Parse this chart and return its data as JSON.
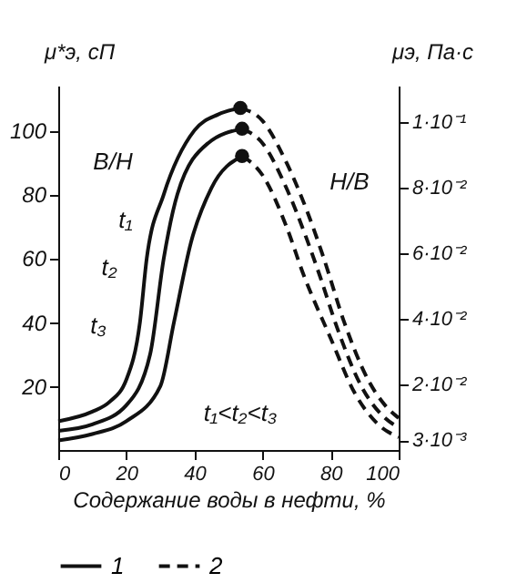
{
  "chart_data": {
    "type": "line",
    "xlabel": "Содержание воды в нефти, %",
    "ylabel": "μ*э, сП",
    "y2label": "μэ, Па·с",
    "xlim": [
      0,
      100
    ],
    "xticks": [
      0,
      20,
      40,
      60,
      80,
      100
    ],
    "ylim": [
      0,
      114
    ],
    "yticks": [
      20,
      40,
      60,
      80,
      100
    ],
    "y2lim": [
      0,
      0.111
    ],
    "y2ticks": [
      {
        "value": 0.003,
        "label": "3·10⁻³"
      },
      {
        "value": 0.02,
        "label": "2·10⁻²"
      },
      {
        "value": 0.04,
        "label": "4·10⁻²"
      },
      {
        "value": 0.06,
        "label": "6·10⁻²"
      },
      {
        "value": 0.08,
        "label": "8·10⁻²"
      },
      {
        "value": 0.1,
        "label": "1·10⁻¹"
      }
    ],
    "grid": false,
    "legend": "bottom",
    "series": [
      {
        "name": "1",
        "color": "#111111",
        "line_style": "solid",
        "x": [
          0,
          10,
          15,
          20,
          24,
          26,
          31,
          40,
          47,
          53.5
        ],
        "values": [
          9,
          12,
          15,
          22,
          40,
          60,
          80,
          100,
          105,
          107
        ]
      },
      {
        "color": "#111111",
        "line_style": "solid",
        "x": [
          0,
          10,
          20,
          27,
          31,
          35,
          44,
          54
        ],
        "values": [
          6,
          8,
          14,
          30,
          60,
          80,
          96,
          100.5
        ]
      },
      {
        "color": "#111111",
        "line_style": "solid",
        "x": [
          0,
          10,
          20,
          30,
          34,
          39,
          45,
          54
        ],
        "values": [
          3,
          5,
          9,
          20,
          40,
          65,
          82,
          92
        ]
      },
      {
        "name": "2",
        "color": "#111111",
        "line_style": "dashed",
        "x": [
          53.5,
          60,
          67,
          73,
          78,
          84,
          91,
          96,
          100
        ],
        "values": [
          107,
          103,
          90,
          75,
          60,
          40,
          22,
          14,
          10
        ]
      },
      {
        "color": "#111111",
        "line_style": "dashed",
        "x": [
          54,
          60,
          67,
          73,
          77,
          82,
          89,
          95,
          100
        ],
        "values": [
          100.5,
          96,
          82,
          66,
          54,
          38,
          20,
          11,
          7
        ]
      },
      {
        "color": "#111111",
        "line_style": "dashed",
        "x": [
          54,
          60,
          67,
          72,
          80,
          87,
          94,
          100
        ],
        "values": [
          92,
          86,
          70,
          55,
          35,
          18,
          8,
          4
        ]
      },
      {
        "type": "scatter",
        "marker": "circle",
        "color": "#111111",
        "x": [
          53.5,
          54,
          54
        ],
        "values": [
          107,
          100.5,
          92
        ]
      }
    ],
    "annotations": [
      "t₁",
      "t₂",
      "t₃",
      "В/Н",
      "Н/В",
      "t₁<t₂<t₃"
    ]
  }
}
